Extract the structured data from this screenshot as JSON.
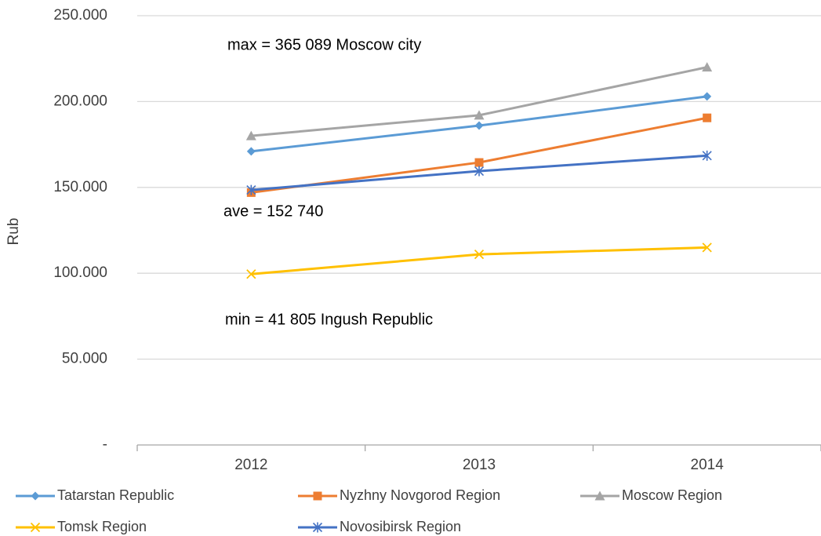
{
  "chart_data": {
    "type": "line",
    "y_label": "Rub",
    "annotations": [
      "max = 365 089 Moscow city",
      "ave = 152 740",
      "min = 41 805 Ingush Republic"
    ],
    "categories": [
      "2012",
      "2013",
      "2014"
    ],
    "series": [
      {
        "name": "Tatarstan Republic",
        "color": "#5b9bd5",
        "marker": "diamond",
        "values": [
          171000,
          186000,
          203000
        ]
      },
      {
        "name": "Nyzhny Novgorod Region",
        "color": "#ed7d31",
        "marker": "square",
        "values": [
          147000,
          164500,
          190500
        ]
      },
      {
        "name": "Moscow Region",
        "color": "#a5a5a5",
        "marker": "triangle",
        "values": [
          180000,
          192000,
          220000
        ]
      },
      {
        "name": "Tomsk Region",
        "color": "#ffc000",
        "marker": "x",
        "values": [
          99500,
          111000,
          115000
        ]
      },
      {
        "name": "Novosibirsk Region",
        "color": "#4472c4",
        "marker": "star",
        "values": [
          148500,
          159500,
          168500
        ]
      }
    ],
    "ylim": [
      0,
      250000
    ],
    "yticks": [
      {
        "value": 0,
        "label": "-"
      },
      {
        "value": 50000,
        "label": "50.000"
      },
      {
        "value": 100000,
        "label": "100.000"
      },
      {
        "value": 150000,
        "label": "150.000"
      },
      {
        "value": 200000,
        "label": "200.000"
      },
      {
        "value": 250000,
        "label": "250.000"
      }
    ],
    "grid": true
  }
}
